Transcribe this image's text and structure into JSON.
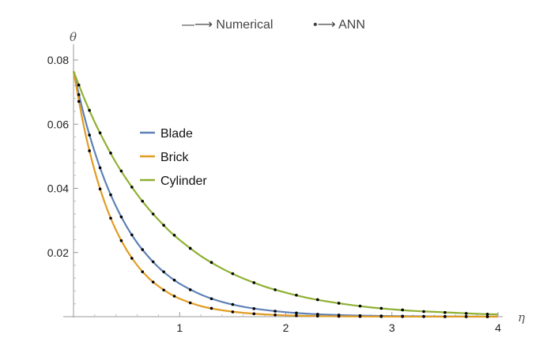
{
  "chart_data": {
    "type": "line",
    "title": "",
    "header": {
      "numerical_label": "—⟶ Numerical",
      "ann_label": "•⟶ ANN"
    },
    "xlabel": "η",
    "ylabel": "θ",
    "xlim": [
      0,
      4
    ],
    "ylim": [
      0,
      0.08
    ],
    "x_ticks": [
      {
        "value": 1,
        "label": "1"
      },
      {
        "value": 2,
        "label": "2"
      },
      {
        "value": 3,
        "label": "3"
      },
      {
        "value": 4,
        "label": "4"
      }
    ],
    "y_ticks": [
      {
        "value": 0.02,
        "label": "0.02"
      },
      {
        "value": 0.04,
        "label": "0.04"
      },
      {
        "value": 0.06,
        "label": "0.06"
      },
      {
        "value": 0.08,
        "label": "0.08"
      }
    ],
    "grid": false,
    "legend_position": "upper-left-inside",
    "series": [
      {
        "name": "Blade",
        "color": "#5e81b5",
        "x": [
          0,
          0.1,
          0.2,
          0.3,
          0.4,
          0.5,
          0.6,
          0.7,
          0.8,
          0.9,
          1.0,
          1.2,
          1.4,
          1.6,
          1.8,
          2.0,
          2.2,
          2.4,
          2.6,
          2.8,
          3.0,
          3.2,
          3.4,
          3.6,
          3.8,
          4.0
        ],
        "y": [
          0.0765,
          0.0626,
          0.0513,
          0.042,
          0.0344,
          0.0281,
          0.023,
          0.0189,
          0.0154,
          0.0126,
          0.0103,
          0.0069,
          0.0046,
          0.0031,
          0.0021,
          0.0014,
          0.00094,
          0.00063,
          0.00042,
          0.00028,
          0.00019,
          0.00013,
          8e-05,
          6e-05,
          4e-05,
          3e-05
        ]
      },
      {
        "name": "Brick",
        "color": "#e19c24",
        "x": [
          0,
          0.1,
          0.2,
          0.3,
          0.4,
          0.5,
          0.6,
          0.7,
          0.8,
          0.9,
          1.0,
          1.2,
          1.4,
          1.6,
          1.8,
          2.0,
          2.2,
          2.4,
          2.6,
          2.8,
          3.0,
          3.2,
          3.4,
          3.6,
          3.8,
          4.0
        ],
        "y": [
          0.0765,
          0.0589,
          0.0454,
          0.035,
          0.027,
          0.0208,
          0.016,
          0.0123,
          0.0095,
          0.0073,
          0.0056,
          0.0033,
          0.002,
          0.0012,
          0.0007,
          0.00041,
          0.00024,
          0.00014,
          9e-05,
          5e-05,
          3e-05,
          2e-05,
          1e-05,
          1e-05,
          5e-06,
          3e-06
        ]
      },
      {
        "name": "Cylinder",
        "color": "#8fb032",
        "x": [
          0,
          0.1,
          0.2,
          0.3,
          0.4,
          0.5,
          0.6,
          0.7,
          0.8,
          0.9,
          1.0,
          1.2,
          1.4,
          1.6,
          1.8,
          2.0,
          2.2,
          2.4,
          2.6,
          2.8,
          3.0,
          3.2,
          3.4,
          3.6,
          3.8,
          4.0
        ],
        "y": [
          0.0765,
          0.0681,
          0.0606,
          0.054,
          0.048,
          0.0428,
          0.0381,
          0.0339,
          0.0302,
          0.0268,
          0.0239,
          0.0189,
          0.015,
          0.0119,
          0.0094,
          0.0075,
          0.0059,
          0.0047,
          0.0037,
          0.0029,
          0.0023,
          0.0018,
          0.0015,
          0.0012,
          0.0009,
          0.0007
        ]
      }
    ],
    "ann_series": [
      {
        "name": "Blade ANN",
        "color": "#000000",
        "x": [
          0.05,
          0.15,
          0.25,
          0.35,
          0.45,
          0.55,
          0.65,
          0.75,
          0.85,
          0.95,
          1.1,
          1.3,
          1.5,
          1.7,
          1.9,
          2.1,
          2.3,
          2.5,
          2.7,
          2.9,
          3.1,
          3.3,
          3.5,
          3.7,
          3.9
        ],
        "y": [
          0.0692,
          0.0566,
          0.0464,
          0.038,
          0.0311,
          0.0255,
          0.0209,
          0.0171,
          0.014,
          0.0114,
          0.0084,
          0.0056,
          0.0038,
          0.0025,
          0.0017,
          0.00115,
          0.00077,
          0.00052,
          0.00034,
          0.00023,
          0.00016,
          0.0001,
          7e-05,
          5e-05,
          3e-05
        ]
      },
      {
        "name": "Brick ANN",
        "color": "#000000",
        "x": [
          0.05,
          0.15,
          0.25,
          0.35,
          0.45,
          0.55,
          0.65,
          0.75,
          0.85,
          0.95,
          1.1,
          1.3,
          1.5,
          1.7,
          1.9,
          2.1,
          2.3,
          2.5,
          2.7,
          2.9,
          3.1,
          3.3,
          3.5,
          3.7,
          3.9
        ],
        "y": [
          0.0671,
          0.0517,
          0.0398,
          0.0307,
          0.0237,
          0.0182,
          0.014,
          0.0108,
          0.0083,
          0.0064,
          0.0043,
          0.0026,
          0.0015,
          0.0009,
          0.00054,
          0.00032,
          0.00019,
          0.00011,
          7e-05,
          4e-05,
          2e-05,
          2e-05,
          1e-05,
          1e-05,
          4e-06
        ]
      },
      {
        "name": "Cylinder ANN",
        "color": "#000000",
        "x": [
          0.05,
          0.15,
          0.25,
          0.35,
          0.45,
          0.55,
          0.65,
          0.75,
          0.85,
          0.95,
          1.1,
          1.3,
          1.5,
          1.7,
          1.9,
          2.1,
          2.3,
          2.5,
          2.7,
          2.9,
          3.1,
          3.3,
          3.5,
          3.7,
          3.9
        ],
        "y": [
          0.0722,
          0.0643,
          0.0573,
          0.051,
          0.0454,
          0.0404,
          0.036,
          0.032,
          0.0285,
          0.0254,
          0.0213,
          0.0169,
          0.0134,
          0.0106,
          0.0084,
          0.0067,
          0.0053,
          0.0042,
          0.0033,
          0.0026,
          0.0021,
          0.0016,
          0.0013,
          0.001,
          0.0008
        ]
      }
    ]
  }
}
